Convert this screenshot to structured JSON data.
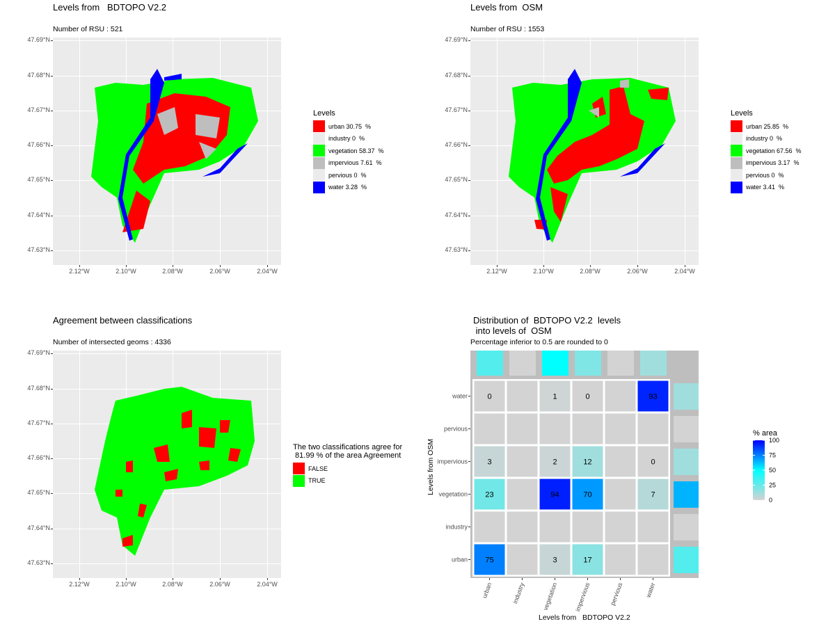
{
  "map_panels": [
    {
      "id": "bdtopo",
      "title": "Levels from   BDTOPO V2.2",
      "subtitle": "Number of RSU : 521",
      "legend_title": "Levels",
      "legend": [
        {
          "label": "urban 30.75  %",
          "color": "#ff0000"
        },
        {
          "label": "industry 0  %",
          "color": "#ebebeb"
        },
        {
          "label": "vegetation 58.37  %",
          "color": "#00ff00"
        },
        {
          "label": "impervious 7.61  %",
          "color": "#bebebe"
        },
        {
          "label": "pervious 0  %",
          "color": "#ebebeb"
        },
        {
          "label": "water 3.28  %",
          "color": "#0000ff"
        }
      ]
    },
    {
      "id": "osm",
      "title": "Levels from  OSM",
      "subtitle": "Number of RSU : 1553",
      "legend_title": "Levels",
      "legend": [
        {
          "label": "urban 25.85  %",
          "color": "#ff0000"
        },
        {
          "label": "industry 0  %",
          "color": "#ebebeb"
        },
        {
          "label": "vegetation 67.56  %",
          "color": "#00ff00"
        },
        {
          "label": "impervious 3.17  %",
          "color": "#bebebe"
        },
        {
          "label": "pervious 0  %",
          "color": "#ebebeb"
        },
        {
          "label": "water 3.41  %",
          "color": "#0000ff"
        }
      ]
    },
    {
      "id": "agreement",
      "title": "Agreement between classifications",
      "subtitle": "Number of intersected geoms : 4336",
      "legend_title": "The two classifications agree for\n 81.99 % of the area Agreement",
      "legend": [
        {
          "label": "FALSE",
          "color": "#ff0000"
        },
        {
          "label": "TRUE",
          "color": "#00ff00"
        }
      ]
    }
  ],
  "map_axes": {
    "y_ticks": [
      "47.69°N",
      "47.68°N",
      "47.67°N",
      "47.66°N",
      "47.65°N",
      "47.64°N",
      "47.63°N"
    ],
    "x_ticks": [
      "2.12°W",
      "2.10°W",
      "2.08°W",
      "2.06°W",
      "2.04°W"
    ]
  },
  "heatmap": {
    "title": "Distribution of  BDTOPO V2.2  levels\n into levels of  OSM",
    "subtitle": "Percentage inferior to 0.5 are rounded to 0",
    "xlabel": "Levels from   BDTOPO V2.2",
    "ylabel": "Levels from  OSM",
    "legend_title": "% area",
    "legend_ticks": [
      "100",
      "75",
      "50",
      "25",
      "0"
    ]
  },
  "chart_data": [
    {
      "type": "heatmap",
      "title": "Distribution of  BDTOPO V2.2  levels\n into levels of  OSM",
      "subtitle": "Percentage inferior to 0.5 are rounded to 0",
      "xlabel": "Levels from   BDTOPO V2.2",
      "ylabel": "Levels from  OSM",
      "x_categories": [
        "urban",
        "industry",
        "vegetation",
        "impervious",
        "pervious",
        "water"
      ],
      "y_categories": [
        "water",
        "pervious",
        "impervious",
        "vegetation",
        "industry",
        "urban"
      ],
      "values": [
        [
          0,
          null,
          1,
          0,
          null,
          93
        ],
        [
          null,
          null,
          null,
          null,
          null,
          null
        ],
        [
          3,
          null,
          2,
          12,
          null,
          0
        ],
        [
          23,
          null,
          94,
          70,
          null,
          7
        ],
        [
          null,
          null,
          null,
          null,
          null,
          null
        ],
        [
          75,
          null,
          3,
          17,
          null,
          null
        ]
      ],
      "top_marginal": [
        30,
        null,
        50,
        20,
        null,
        12
      ],
      "right_marginal": [
        12,
        null,
        12,
        65,
        null,
        30
      ],
      "color_scale": {
        "min": 0,
        "max": 100,
        "colors": [
          "#d3d3d3",
          "#00ffff",
          "#0000ff"
        ]
      },
      "legend_title": "% area"
    }
  ]
}
